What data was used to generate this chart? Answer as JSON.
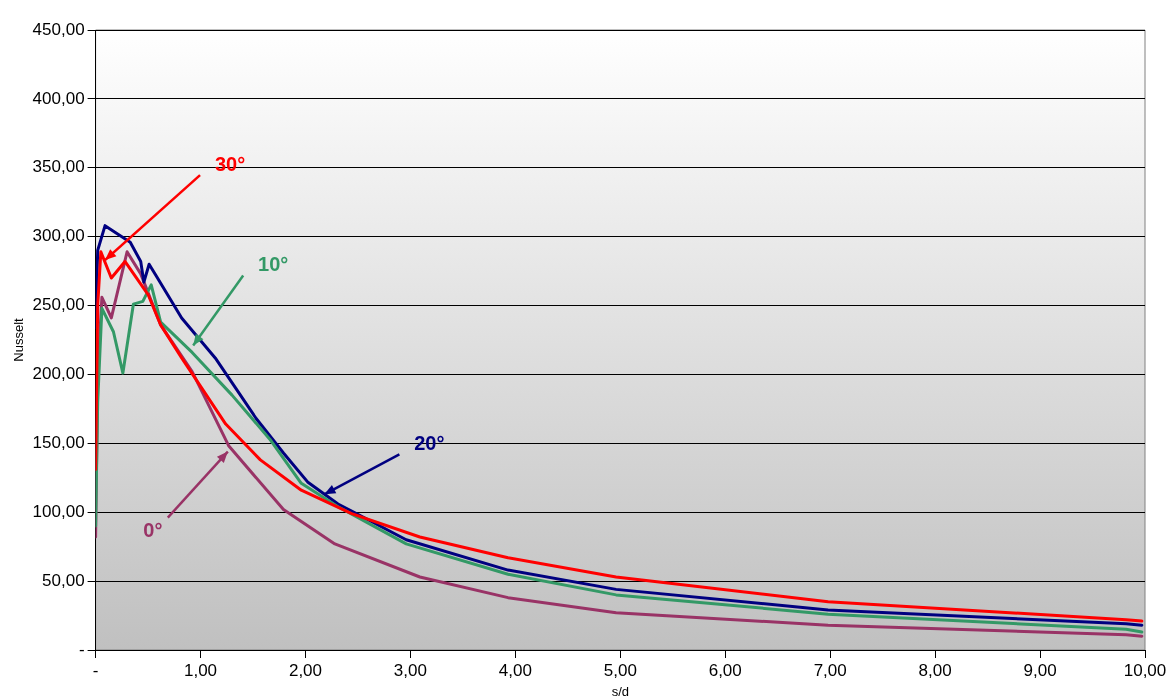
{
  "chart_data": {
    "type": "line",
    "xlabel": "s/d",
    "ylabel": "Nusselt",
    "xlim": [
      0,
      10
    ],
    "xticks": [
      {
        "value": 0,
        "label": "-"
      },
      {
        "value": 1,
        "label": "1,00"
      },
      {
        "value": 2,
        "label": "2,00"
      },
      {
        "value": 3,
        "label": "3,00"
      },
      {
        "value": 4,
        "label": "4,00"
      },
      {
        "value": 5,
        "label": "5,00"
      },
      {
        "value": 6,
        "label": "6,00"
      },
      {
        "value": 7,
        "label": "7,00"
      },
      {
        "value": 8,
        "label": "8,00"
      },
      {
        "value": 9,
        "label": "9,00"
      },
      {
        "value": 10,
        "label": "10,00"
      }
    ],
    "ylim": [
      0,
      450
    ],
    "yticks": [
      {
        "value": 0,
        "label": "-"
      },
      {
        "value": 50,
        "label": "50,00"
      },
      {
        "value": 100,
        "label": "100,00"
      },
      {
        "value": 150,
        "label": "150,00"
      },
      {
        "value": 200,
        "label": "200,00"
      },
      {
        "value": 250,
        "label": "250,00"
      },
      {
        "value": 300,
        "label": "300,00"
      },
      {
        "value": 350,
        "label": "350,00"
      },
      {
        "value": 400,
        "label": "400,00"
      },
      {
        "value": 450,
        "label": "450,00"
      }
    ],
    "grid": "y",
    "legend": false,
    "marker": "none",
    "line_style": "solid",
    "series": [
      {
        "color": "#ff0000",
        "x": [
          0,
          0.02,
          0.05,
          0.15,
          0.28,
          0.5,
          0.62,
          0.82,
          1.24,
          1.57,
          1.96,
          2.44,
          3.09,
          3.93,
          4.96,
          6.98,
          9.82,
          9.97
        ],
        "values": [
          131,
          250,
          289,
          270,
          282,
          258,
          236,
          212,
          164,
          138,
          116,
          99,
          82,
          67,
          53,
          35,
          22,
          21
        ]
      },
      {
        "color": "#339966",
        "x": [
          0,
          0.02,
          0.06,
          0.17,
          0.26,
          0.36,
          0.45,
          0.53,
          0.62,
          0.92,
          1.3,
          1.66,
          1.96,
          2.31,
          2.96,
          3.93,
          4.96,
          6.98,
          9.82,
          9.97
        ],
        "values": [
          90,
          180,
          248,
          231,
          201,
          251,
          253,
          265,
          238,
          216,
          185,
          153,
          121,
          104,
          77,
          55,
          40,
          26,
          15,
          13
        ]
      },
      {
        "color": "#000080",
        "x": [
          0,
          0.02,
          0.09,
          0.33,
          0.43,
          0.46,
          0.51,
          0.59,
          0.82,
          1.14,
          1.53,
          1.79,
          2.02,
          2.31,
          2.96,
          3.93,
          4.96,
          6.98,
          9.82,
          9.97
        ],
        "values": [
          234,
          290,
          308,
          296,
          282,
          267,
          280,
          270,
          241,
          212,
          168,
          143,
          122,
          106,
          80,
          58,
          44,
          29,
          19,
          18
        ]
      },
      {
        "color": "#993366",
        "x": [
          0,
          0.02,
          0.06,
          0.15,
          0.3,
          0.43,
          0.62,
          0.92,
          1.27,
          1.79,
          2.28,
          3.09,
          3.93,
          4.96,
          6.98,
          9.82,
          9.97
        ],
        "values": [
          82,
          200,
          256,
          241,
          289,
          273,
          236,
          202,
          148,
          102,
          77,
          53,
          38,
          27,
          18,
          11,
          10
        ]
      }
    ],
    "annotations": [
      {
        "text": "30°",
        "x": 0.09,
        "y": 283
      },
      {
        "text": "10°",
        "x": 0.93,
        "y": 221
      },
      {
        "text": "20°",
        "x": 2.18,
        "y": 113
      },
      {
        "text": "0°",
        "x": 1.26,
        "y": 144
      }
    ]
  }
}
